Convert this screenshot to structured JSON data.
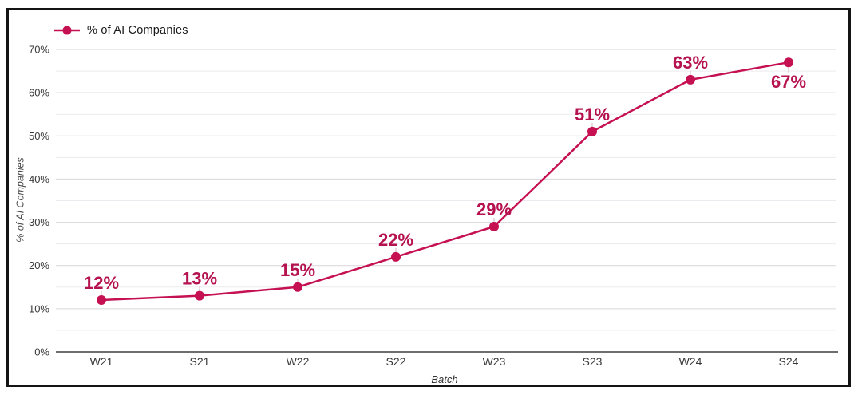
{
  "chart_data": {
    "type": "line",
    "categories": [
      "W21",
      "S21",
      "W22",
      "S22",
      "W23",
      "S23",
      "W24",
      "S24"
    ],
    "series": [
      {
        "name": "% of AI Companies",
        "values": [
          12,
          13,
          15,
          22,
          29,
          51,
          63,
          67
        ],
        "point_labels": [
          "12%",
          "13%",
          "15%",
          "22%",
          "29%",
          "51%",
          "63%",
          "67%"
        ],
        "label_positions": [
          "above",
          "above",
          "above",
          "above",
          "above",
          "above",
          "above",
          "below"
        ]
      }
    ],
    "title": "",
    "xlabel": "Batch",
    "ylabel": "% of AI Companies",
    "ylim": [
      0,
      70
    ],
    "ytick_step": 10,
    "minor_gridline_step": 5,
    "yticklabels": [
      "0%",
      "10%",
      "20%",
      "30%",
      "40%",
      "50%",
      "60%",
      "70%"
    ],
    "grid": true,
    "legend_position": "top-left",
    "colors": {
      "line": "#C51052",
      "point": "#C51052",
      "point_label": "#B5124F",
      "grid_minor": "#ECEAEE",
      "grid_major": "#D9D6D9",
      "axis_line": "#6E6E6E",
      "tick_text": "#3A3A3A",
      "legend_text": "#1B1B1B",
      "leader_line": "#CFB3C0",
      "frame_border": "#141414"
    }
  }
}
